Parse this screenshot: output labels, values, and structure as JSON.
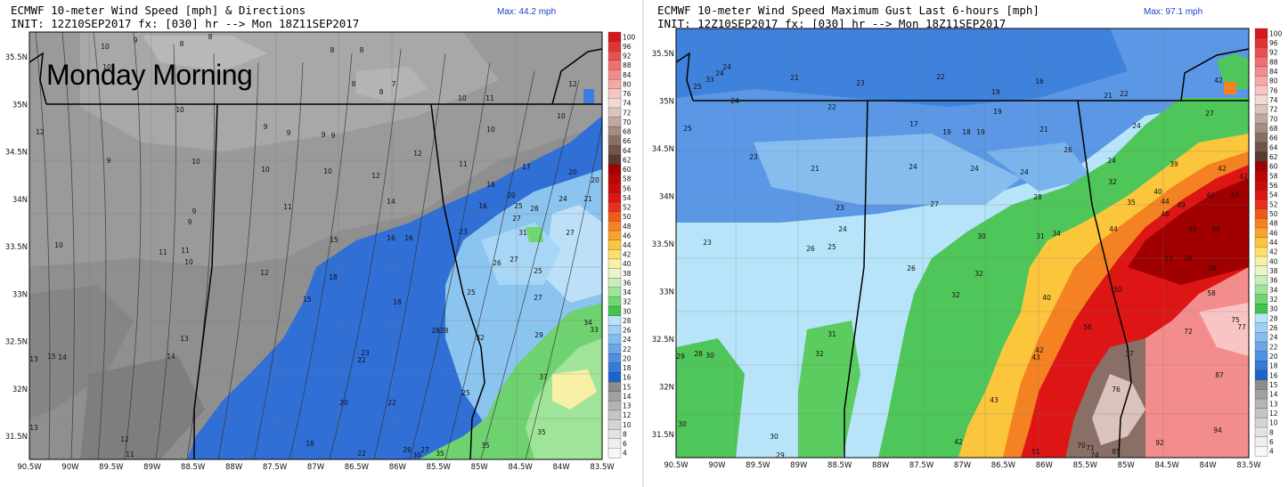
{
  "left_panel": {
    "title_line1": "ECMWF 10-meter Wind Speed [mph] & Directions",
    "title_line2": "INIT: 12Z10SEP2017 fx: [030] hr --> Mon 18Z11SEP2017",
    "max_label": "Max: 44.2 mph",
    "overlay_text": "Monday Morning",
    "colorbar": [
      "100",
      "96",
      "92",
      "88",
      "84",
      "80",
      "76",
      "74",
      "72",
      "70",
      "68",
      "66",
      "64",
      "62",
      "60",
      "58",
      "56",
      "54",
      "52",
      "50",
      "48",
      "46",
      "44",
      "42",
      "40",
      "38",
      "36",
      "34",
      "32",
      "30",
      "28",
      "26",
      "24",
      "22",
      "20",
      "18",
      "16",
      "15",
      "14",
      "13",
      "12",
      "10",
      "8",
      "6",
      "4"
    ],
    "colorbar_colors": [
      "#d7181b",
      "#e23434",
      "#ea5050",
      "#ef6e6e",
      "#f38c8c",
      "#f6a8a8",
      "#f8c4c4",
      "#f3d9d4",
      "#d9c3bc",
      "#bea89f",
      "#a48b83",
      "#8a6f67",
      "#70544d",
      "#5a3a33",
      "#a00000",
      "#b80505",
      "#cc0a0a",
      "#dd1515",
      "#e83020",
      "#ef5a1a",
      "#f48222",
      "#f8a52c",
      "#fbc63c",
      "#fde06c",
      "#f8f0a4",
      "#e8f6c8",
      "#c8eebb",
      "#a0e49a",
      "#70d672",
      "#40c44a",
      "#b8e4fa",
      "#9ed0f4",
      "#84bcee",
      "#6aa6e8",
      "#5090e2",
      "#367ad8",
      "#1c64cc",
      "#8c8c8c",
      "#a0a0a0",
      "#b4b4b4",
      "#c4c4c4",
      "#d4d4d4",
      "#e2e2e2",
      "#eeeeee",
      "#f8f8f8"
    ],
    "labels": [
      {
        "t": "10",
        "x": 118,
        "y": 55
      },
      {
        "t": "9",
        "x": 152,
        "y": 48
      },
      {
        "t": "8",
        "x": 204,
        "y": 52
      },
      {
        "t": "8",
        "x": 236,
        "y": 44
      },
      {
        "t": "8",
        "x": 373,
        "y": 59
      },
      {
        "t": "8",
        "x": 406,
        "y": 59
      },
      {
        "t": "10",
        "x": 120,
        "y": 78
      },
      {
        "t": "7",
        "x": 442,
        "y": 97
      },
      {
        "t": "8",
        "x": 397,
        "y": 97
      },
      {
        "t": "8",
        "x": 428,
        "y": 106
      },
      {
        "t": "12",
        "x": 643,
        "y": 97
      },
      {
        "t": "10",
        "x": 202,
        "y": 126
      },
      {
        "t": "12",
        "x": 45,
        "y": 151
      },
      {
        "t": "9",
        "x": 298,
        "y": 145
      },
      {
        "t": "9",
        "x": 324,
        "y": 152
      },
      {
        "t": "9",
        "x": 363,
        "y": 154
      },
      {
        "t": "9",
        "x": 374,
        "y": 155
      },
      {
        "t": "10",
        "x": 519,
        "y": 113
      },
      {
        "t": "11",
        "x": 550,
        "y": 113
      },
      {
        "t": "10",
        "x": 630,
        "y": 133
      },
      {
        "t": "10",
        "x": 551,
        "y": 148
      },
      {
        "t": "9",
        "x": 122,
        "y": 183
      },
      {
        "t": "10",
        "x": 220,
        "y": 184
      },
      {
        "t": "10",
        "x": 298,
        "y": 193
      },
      {
        "t": "10",
        "x": 368,
        "y": 195
      },
      {
        "t": "12",
        "x": 469,
        "y": 175
      },
      {
        "t": "11",
        "x": 520,
        "y": 187
      },
      {
        "t": "12",
        "x": 422,
        "y": 200
      },
      {
        "t": "17",
        "x": 591,
        "y": 190
      },
      {
        "t": "20",
        "x": 643,
        "y": 196
      },
      {
        "t": "20",
        "x": 668,
        "y": 205
      },
      {
        "t": "16",
        "x": 551,
        "y": 210
      },
      {
        "t": "14",
        "x": 439,
        "y": 229
      },
      {
        "t": "9",
        "x": 218,
        "y": 240
      },
      {
        "t": "11",
        "x": 323,
        "y": 235
      },
      {
        "t": "20",
        "x": 574,
        "y": 222
      },
      {
        "t": "24",
        "x": 632,
        "y": 226
      },
      {
        "t": "21",
        "x": 660,
        "y": 226
      },
      {
        "t": "16",
        "x": 542,
        "y": 234
      },
      {
        "t": "25",
        "x": 582,
        "y": 234
      },
      {
        "t": "28",
        "x": 600,
        "y": 237
      },
      {
        "t": "27",
        "x": 580,
        "y": 248
      },
      {
        "t": "9",
        "x": 213,
        "y": 252
      },
      {
        "t": "10",
        "x": 66,
        "y": 278
      },
      {
        "t": "11",
        "x": 183,
        "y": 286
      },
      {
        "t": "11",
        "x": 208,
        "y": 284
      },
      {
        "t": "15",
        "x": 375,
        "y": 272
      },
      {
        "t": "16",
        "x": 439,
        "y": 270
      },
      {
        "t": "16",
        "x": 459,
        "y": 270
      },
      {
        "t": "23",
        "x": 520,
        "y": 263
      },
      {
        "t": "31",
        "x": 587,
        "y": 264
      },
      {
        "t": "27",
        "x": 640,
        "y": 264
      },
      {
        "t": "10",
        "x": 212,
        "y": 297
      },
      {
        "t": "26",
        "x": 558,
        "y": 298
      },
      {
        "t": "27",
        "x": 577,
        "y": 294
      },
      {
        "t": "25",
        "x": 604,
        "y": 307
      },
      {
        "t": "12",
        "x": 297,
        "y": 309
      },
      {
        "t": "18",
        "x": 374,
        "y": 314
      },
      {
        "t": "25",
        "x": 529,
        "y": 331
      },
      {
        "t": "27",
        "x": 604,
        "y": 337
      },
      {
        "t": "15",
        "x": 345,
        "y": 339
      },
      {
        "t": "18",
        "x": 446,
        "y": 342
      },
      {
        "t": "34",
        "x": 660,
        "y": 365
      },
      {
        "t": "33",
        "x": 667,
        "y": 373
      },
      {
        "t": "2828",
        "x": 494,
        "y": 374
      },
      {
        "t": "29",
        "x": 605,
        "y": 379
      },
      {
        "t": "13",
        "x": 207,
        "y": 383
      },
      {
        "t": "32",
        "x": 539,
        "y": 382
      },
      {
        "t": "23",
        "x": 410,
        "y": 399
      },
      {
        "t": "22",
        "x": 406,
        "y": 407
      },
      {
        "t": "13",
        "x": 38,
        "y": 406
      },
      {
        "t": "15",
        "x": 58,
        "y": 403
      },
      {
        "t": "14",
        "x": 70,
        "y": 404
      },
      {
        "t": "14",
        "x": 192,
        "y": 403
      },
      {
        "t": "37",
        "x": 610,
        "y": 426
      },
      {
        "t": "25",
        "x": 523,
        "y": 444
      },
      {
        "t": "20",
        "x": 386,
        "y": 455
      },
      {
        "t": "22",
        "x": 440,
        "y": 455
      },
      {
        "t": "35",
        "x": 608,
        "y": 488
      },
      {
        "t": "13",
        "x": 38,
        "y": 483
      },
      {
        "t": "12",
        "x": 140,
        "y": 496
      },
      {
        "t": "18",
        "x": 348,
        "y": 501
      },
      {
        "t": "35",
        "x": 545,
        "y": 503
      },
      {
        "t": "26",
        "x": 457,
        "y": 508
      },
      {
        "t": "27",
        "x": 477,
        "y": 508
      },
      {
        "t": "22",
        "x": 406,
        "y": 512
      },
      {
        "t": "30",
        "x": 468,
        "y": 514
      },
      {
        "t": "35",
        "x": 494,
        "y": 512
      },
      {
        "t": "11",
        "x": 146,
        "y": 513
      }
    ],
    "x_ticks": [
      "90.5W",
      "90W",
      "89.5W",
      "89W",
      "88.5W",
      "88W",
      "87.5W",
      "87W",
      "86.5W",
      "86W",
      "85.5W",
      "85W",
      "84.5W",
      "84W",
      "83.5W"
    ],
    "y_ticks": [
      "35.5N",
      "35N",
      "34.5N",
      "34N",
      "33.5N",
      "33N",
      "32.5N",
      "32N",
      "31.5N"
    ]
  },
  "right_panel": {
    "title_line1": "ECMWF 10-meter Wind Speed Maximum Gust Last 6-hours [mph]",
    "title_line2": "INIT: 12Z10SEP2017 fx: [030] hr --> Mon 18Z11SEP2017",
    "max_label": "Max: 97.1 mph",
    "colorbar": [
      "100",
      "96",
      "92",
      "88",
      "84",
      "80",
      "76",
      "74",
      "72",
      "70",
      "68",
      "66",
      "64",
      "62",
      "60",
      "58",
      "56",
      "54",
      "52",
      "50",
      "48",
      "46",
      "44",
      "42",
      "40",
      "38",
      "36",
      "34",
      "32",
      "30",
      "28",
      "26",
      "24",
      "22",
      "20",
      "18",
      "16",
      "15",
      "14",
      "13",
      "12",
      "10",
      "8",
      "6",
      "4"
    ],
    "colorbar_colors": [
      "#d7181b",
      "#e23434",
      "#ea5050",
      "#ef6e6e",
      "#f38c8c",
      "#f6a8a8",
      "#f8c4c4",
      "#f3d9d4",
      "#d9c3bc",
      "#bea89f",
      "#a48b83",
      "#8a6f67",
      "#70544d",
      "#5a3a33",
      "#a00000",
      "#b80505",
      "#cc0a0a",
      "#dd1515",
      "#e83020",
      "#ef5a1a",
      "#f48222",
      "#f8a52c",
      "#fbc63c",
      "#fde06c",
      "#f8f0a4",
      "#e8f6c8",
      "#c8eebb",
      "#a0e49a",
      "#70d672",
      "#40c44a",
      "#b8e4fa",
      "#9ed0f4",
      "#84bcee",
      "#6aa6e8",
      "#5090e2",
      "#367ad8",
      "#1c64cc",
      "#8c8c8c",
      "#a0a0a0",
      "#b4b4b4",
      "#c4c4c4",
      "#d4d4d4",
      "#e2e2e2",
      "#eeeeee",
      "#f8f8f8"
    ],
    "labels": [
      {
        "t": "17",
        "x": 677,
        "y": 40
      },
      {
        "t": "21",
        "x": 505,
        "y": 46
      },
      {
        "t": "22",
        "x": 618,
        "y": 52
      },
      {
        "t": "21",
        "x": 479,
        "y": 50
      },
      {
        "t": "19",
        "x": 584,
        "y": 55
      },
      {
        "t": "19",
        "x": 592,
        "y": 61
      },
      {
        "t": "17",
        "x": 627,
        "y": 74
      },
      {
        "t": "24",
        "x": 816,
        "y": 78
      },
      {
        "t": "25",
        "x": 783,
        "y": 100
      },
      {
        "t": "33",
        "x": 797,
        "y": 92
      },
      {
        "t": "24",
        "x": 808,
        "y": 85
      },
      {
        "t": "21",
        "x": 892,
        "y": 90
      },
      {
        "t": "23",
        "x": 966,
        "y": 96
      },
      {
        "t": "22",
        "x": 1056,
        "y": 89
      },
      {
        "t": "16",
        "x": 1167,
        "y": 94
      },
      {
        "t": "42",
        "x": 1368,
        "y": 93
      },
      {
        "t": "19",
        "x": 1118,
        "y": 106
      },
      {
        "t": "21",
        "x": 1244,
        "y": 110
      },
      {
        "t": "22",
        "x": 1262,
        "y": 108
      },
      {
        "t": "24",
        "x": 825,
        "y": 116
      },
      {
        "t": "22",
        "x": 934,
        "y": 123
      },
      {
        "t": "19",
        "x": 1120,
        "y": 128
      },
      {
        "t": "27",
        "x": 1358,
        "y": 130
      },
      {
        "t": "25",
        "x": 772,
        "y": 147
      },
      {
        "t": "17",
        "x": 1026,
        "y": 142
      },
      {
        "t": "19",
        "x": 1063,
        "y": 151
      },
      {
        "t": "18",
        "x": 1085,
        "y": 151
      },
      {
        "t": "19",
        "x": 1101,
        "y": 151
      },
      {
        "t": "21",
        "x": 1172,
        "y": 148
      },
      {
        "t": "24",
        "x": 1276,
        "y": 144
      },
      {
        "t": "23",
        "x": 846,
        "y": 179
      },
      {
        "t": "26",
        "x": 1199,
        "y": 171
      },
      {
        "t": "24",
        "x": 1248,
        "y": 183
      },
      {
        "t": "39",
        "x": 1318,
        "y": 187
      },
      {
        "t": "42",
        "x": 1372,
        "y": 192
      },
      {
        "t": "21",
        "x": 915,
        "y": 192
      },
      {
        "t": "24",
        "x": 1025,
        "y": 190
      },
      {
        "t": "24",
        "x": 1094,
        "y": 192
      },
      {
        "t": "24",
        "x": 1150,
        "y": 196
      },
      {
        "t": "42",
        "x": 1396,
        "y": 201
      },
      {
        "t": "32",
        "x": 1249,
        "y": 207
      },
      {
        "t": "40",
        "x": 1300,
        "y": 218
      },
      {
        "t": "46",
        "x": 1359,
        "y": 222
      },
      {
        "t": "43",
        "x": 1386,
        "y": 222
      },
      {
        "t": "28",
        "x": 1165,
        "y": 224
      },
      {
        "t": "35",
        "x": 1270,
        "y": 230
      },
      {
        "t": "44",
        "x": 1308,
        "y": 229
      },
      {
        "t": "49",
        "x": 1326,
        "y": 233
      },
      {
        "t": "27",
        "x": 1049,
        "y": 232
      },
      {
        "t": "23",
        "x": 943,
        "y": 236
      },
      {
        "t": "48",
        "x": 1308,
        "y": 243
      },
      {
        "t": "24",
        "x": 946,
        "y": 260
      },
      {
        "t": "44",
        "x": 1250,
        "y": 260
      },
      {
        "t": "55",
        "x": 1339,
        "y": 260
      },
      {
        "t": "56",
        "x": 1365,
        "y": 260
      },
      {
        "t": "30",
        "x": 1102,
        "y": 268
      },
      {
        "t": "31",
        "x": 1168,
        "y": 268
      },
      {
        "t": "34",
        "x": 1186,
        "y": 265
      },
      {
        "t": "23",
        "x": 794,
        "y": 275
      },
      {
        "t": "26",
        "x": 910,
        "y": 282
      },
      {
        "t": "25",
        "x": 934,
        "y": 280
      },
      {
        "t": "53",
        "x": 1312,
        "y": 293
      },
      {
        "t": "58",
        "x": 1334,
        "y": 293
      },
      {
        "t": "26",
        "x": 1023,
        "y": 304
      },
      {
        "t": "32",
        "x": 1099,
        "y": 310
      },
      {
        "t": "58",
        "x": 1361,
        "y": 304
      },
      {
        "t": "50",
        "x": 1255,
        "y": 328
      },
      {
        "t": "58",
        "x": 1360,
        "y": 332
      },
      {
        "t": "32",
        "x": 1073,
        "y": 334
      },
      {
        "t": "40",
        "x": 1175,
        "y": 337
      },
      {
        "t": "75",
        "x": 1387,
        "y": 362
      },
      {
        "t": "77",
        "x": 1394,
        "y": 370
      },
      {
        "t": "56",
        "x": 1221,
        "y": 370
      },
      {
        "t": "72",
        "x": 1334,
        "y": 375
      },
      {
        "t": "31",
        "x": 934,
        "y": 378
      },
      {
        "t": "32",
        "x": 920,
        "y": 400
      },
      {
        "t": "42",
        "x": 1167,
        "y": 396
      },
      {
        "t": "43",
        "x": 1163,
        "y": 404
      },
      {
        "t": "29",
        "x": 764,
        "y": 403
      },
      {
        "t": "28",
        "x": 784,
        "y": 400
      },
      {
        "t": "30",
        "x": 797,
        "y": 402
      },
      {
        "t": "37",
        "x": 1268,
        "y": 400
      },
      {
        "t": "87",
        "x": 1369,
        "y": 424
      },
      {
        "t": "76",
        "x": 1253,
        "y": 440
      },
      {
        "t": "43",
        "x": 1116,
        "y": 452
      },
      {
        "t": "30",
        "x": 766,
        "y": 479
      },
      {
        "t": "94",
        "x": 1367,
        "y": 486
      },
      {
        "t": "30",
        "x": 869,
        "y": 493
      },
      {
        "t": "42",
        "x": 1076,
        "y": 499
      },
      {
        "t": "92",
        "x": 1302,
        "y": 500
      },
      {
        "t": "70",
        "x": 1214,
        "y": 503
      },
      {
        "t": "71",
        "x": 1224,
        "y": 506
      },
      {
        "t": "85",
        "x": 1253,
        "y": 510
      },
      {
        "t": "51",
        "x": 1163,
        "y": 510
      },
      {
        "t": "74",
        "x": 1229,
        "y": 514
      },
      {
        "t": "29",
        "x": 876,
        "y": 514
      }
    ],
    "x_ticks": [
      "90.5W",
      "90W",
      "89.5W",
      "89W",
      "88.5W",
      "88W",
      "87.5W",
      "87W",
      "86.5W",
      "86W",
      "85.5W",
      "85W",
      "84.5W",
      "84W",
      "83.5W"
    ],
    "y_ticks": [
      "35.5N",
      "35N",
      "34.5N",
      "34N",
      "33.5N",
      "33N",
      "32.5N",
      "32N",
      "31.5N"
    ]
  }
}
